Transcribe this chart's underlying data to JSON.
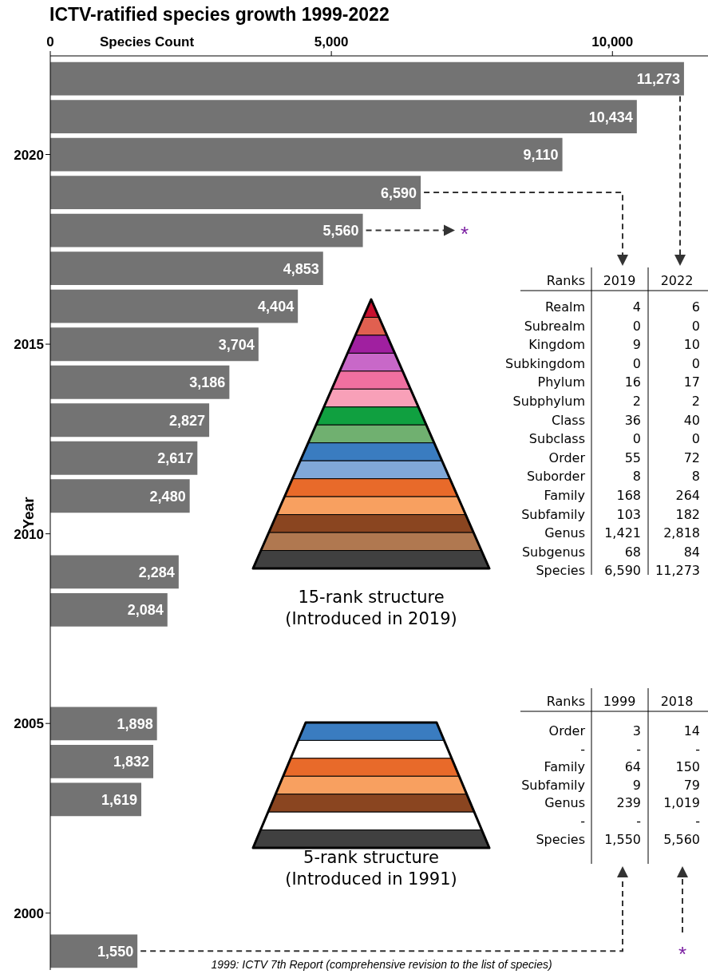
{
  "chart_data": [
    {
      "type": "bar",
      "orientation": "horizontal",
      "title": "ICTV-ratified species growth 1999-2022",
      "xlabel": "Species Count",
      "ylabel": "Year",
      "x": [
        2022,
        2021,
        2020,
        2019,
        2018,
        2017,
        2016,
        2015,
        2014,
        2013,
        2012,
        2011,
        2009,
        2008,
        2005,
        2004,
        2003,
        1999
      ],
      "values": [
        11273,
        10434,
        9110,
        6590,
        5560,
        4853,
        4404,
        3704,
        3186,
        2827,
        2617,
        2480,
        2284,
        2084,
        1898,
        1832,
        1619,
        1550
      ],
      "color": "#737373",
      "xlim": [
        0,
        11700
      ],
      "xticks": [
        0,
        {
          "value": 5000,
          "label": "5,000"
        },
        {
          "value": 10000,
          "label": "10,000"
        }
      ],
      "ylim": [
        1998.5,
        2022.6
      ],
      "yticks": [
        2000,
        2005,
        2010,
        2015,
        2020
      ],
      "value_labels": [
        "11,273",
        "10,434",
        "9,110",
        "6,590",
        "5,560",
        "4,853",
        "4,404",
        "3,704",
        "3,186",
        "2,827",
        "2,617",
        "2,480",
        "2,284",
        "2,084",
        "1,898",
        "1,832",
        "1,619",
        "1,550"
      ],
      "annotations": [
        {
          "text": "*",
          "x": 5560,
          "y": 2018
        },
        "*",
        "1999: ICTV 7th Report (comprehensive revision to the list of species)"
      ]
    },
    {
      "type": "other",
      "ylabel": "Ranks",
      "categories": [
        "2019",
        "2022"
      ],
      "y_categories": [
        "Realm",
        "Subrealm",
        "Kingdom",
        "Subkingdom",
        "Phylum",
        "Subphylum",
        "Class",
        "Subclass",
        "Order",
        "Suborder",
        "Family",
        "Subfamily",
        "Genus",
        "Subgenus",
        "Species"
      ],
      "cell_labels": [
        [
          "4",
          "6"
        ],
        [
          "0",
          "0"
        ],
        [
          "9",
          "10"
        ],
        [
          "0",
          "0"
        ],
        [
          "16",
          "17"
        ],
        [
          "2",
          "2"
        ],
        [
          "36",
          "40"
        ],
        [
          "0",
          "0"
        ],
        [
          "55",
          "72"
        ],
        [
          "8",
          "8"
        ],
        [
          "168",
          "264"
        ],
        [
          "103",
          "182"
        ],
        [
          "1,421",
          "2,818"
        ],
        [
          "68",
          "84"
        ],
        [
          "6,590",
          "11,273"
        ]
      ],
      "colors": [
        "#c8102e",
        "#e06050",
        "#a020a0",
        "#c868c8",
        "#f070a0",
        "#f8a0b8",
        "#10a040",
        "#70b070",
        "#3a7cc0",
        "#80a8d8",
        "#e86a2a",
        "#f8a060",
        "#8a4520",
        "#b07850",
        "#404040"
      ],
      "annotations": [
        "15-rank structure",
        "(Introduced in 2019)"
      ]
    },
    {
      "type": "other",
      "ylabel": "Ranks",
      "categories": [
        "1999",
        "2018"
      ],
      "y_categories": [
        "Order",
        "-",
        "Family",
        "Subfamily",
        "Genus",
        "-",
        "Species"
      ],
      "cell_labels": [
        [
          "3",
          "14"
        ],
        [
          "-",
          "-"
        ],
        [
          "64",
          "150"
        ],
        [
          "9",
          "79"
        ],
        [
          "239",
          "1,019"
        ],
        [
          "-",
          "-"
        ],
        [
          "1,550",
          "5,560"
        ]
      ],
      "colors": [
        "#3a7cc0",
        "#ffffff",
        "#e86a2a",
        "#f8a060",
        "#8a4520",
        "#ffffff",
        "#404040"
      ],
      "annotations": [
        "5-rank structure",
        "(Introduced in 1991)"
      ]
    }
  ]
}
